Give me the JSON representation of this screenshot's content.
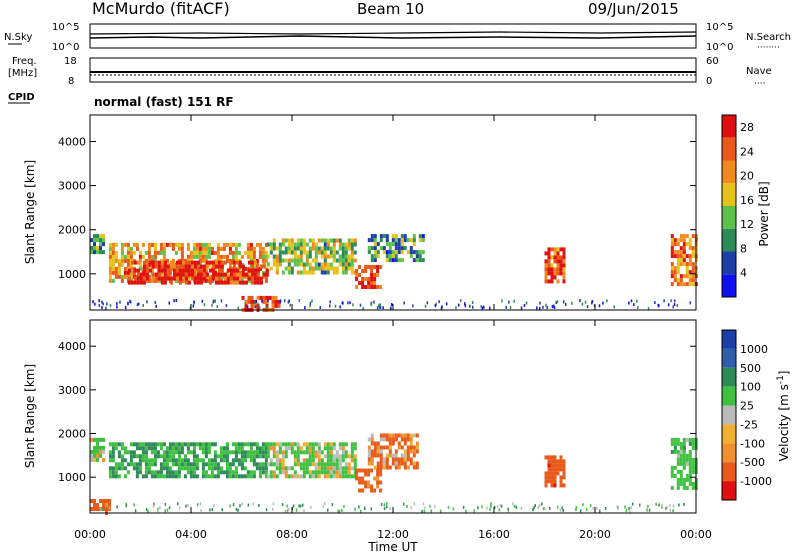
{
  "header": {
    "station": "McMurdo (fitACF)",
    "beam": "Beam 10",
    "date": "09/Jun/2015"
  },
  "side_labels": {
    "nsky": "N.Sky",
    "nsearch": "N.Search",
    "freq_line1": "Freq.",
    "freq_line2": "[MHz]",
    "nave": "Nave",
    "cpid": "CPID",
    "cpid_value": "normal (fast) 151 RF"
  },
  "noise_axis": {
    "left_top": "10^5",
    "left_bottom": "10^0",
    "right_top": "10^5",
    "right_bottom": "10^0"
  },
  "freq_axis": {
    "left_top": "18",
    "left_bottom": "8",
    "right_top": "60",
    "right_bottom": "0"
  },
  "colors": {
    "power_scale": [
      "#1010ee",
      "#1c3fa8",
      "#2f8a5a",
      "#5cc24a",
      "#e6c21a",
      "#f08a1e",
      "#e8591a",
      "#e01010"
    ],
    "velocity_scale": [
      "#e01010",
      "#e85b1a",
      "#f09030",
      "#f0b030",
      "#bbbbbb",
      "#40c040",
      "#2f8a5a",
      "#2f5fa8",
      "#1c3fa8"
    ]
  },
  "chart_data": [
    {
      "type": "heatmap",
      "title": "",
      "xlabel": "",
      "ylabel": "Slant Range [km]",
      "xlim": [
        "00:00",
        "24:00"
      ],
      "ylim": [
        180,
        4600
      ],
      "y_ticks": [
        "1000",
        "2000",
        "3000",
        "4000"
      ],
      "colorbar": {
        "label": "Power [dB]",
        "ticks": [
          "4",
          "8",
          "12",
          "16",
          "20",
          "24",
          "28"
        ],
        "range": [
          0,
          30
        ]
      },
      "echo_regions": [
        {
          "x_start": "00:00",
          "x_end": "00:30",
          "y_start": 1500,
          "y_end": 1900,
          "value": 10
        },
        {
          "x_start": "00:45",
          "x_end": "07:00",
          "y_start": 800,
          "y_end": 1700,
          "value": 20
        },
        {
          "x_start": "01:30",
          "x_end": "07:00",
          "y_start": 800,
          "y_end": 1300,
          "value": 28
        },
        {
          "x_start": "07:00",
          "x_end": "10:30",
          "y_start": 1000,
          "y_end": 1800,
          "value": 14
        },
        {
          "x_start": "10:30",
          "x_end": "11:30",
          "y_start": 700,
          "y_end": 1200,
          "value": 26
        },
        {
          "x_start": "11:00",
          "x_end": "13:15",
          "y_start": 1300,
          "y_end": 1900,
          "value": 10
        },
        {
          "x_start": "06:00",
          "x_end": "07:30",
          "y_start": 200,
          "y_end": 500,
          "value": 26
        },
        {
          "x_start": "18:00",
          "x_end": "18:45",
          "y_start": 800,
          "y_end": 1600,
          "value": 24
        },
        {
          "x_start": "23:00",
          "x_end": "24:00",
          "y_start": 800,
          "y_end": 1900,
          "value": 22
        }
      ]
    },
    {
      "type": "heatmap",
      "title": "",
      "xlabel": "Time UT",
      "ylabel": "Slant Range [km]",
      "xlim": [
        "00:00",
        "24:00"
      ],
      "ylim": [
        180,
        4600
      ],
      "x_ticks": [
        "00:00",
        "04:00",
        "08:00",
        "12:00",
        "16:00",
        "20:00",
        "00:00"
      ],
      "y_ticks": [
        "1000",
        "2000",
        "3000",
        "4000"
      ],
      "colorbar": {
        "label": "Velocity [m s^-1]",
        "ticks": [
          "1000",
          "500",
          "100",
          "25",
          "-25",
          "-100",
          "-500",
          "-1000"
        ]
      },
      "echo_regions": [
        {
          "x_start": "00:00",
          "x_end": "00:30",
          "y_start": 1400,
          "y_end": 1900,
          "value": 150
        },
        {
          "x_start": "00:45",
          "x_end": "07:00",
          "y_start": 1000,
          "y_end": 1800,
          "value": 500
        },
        {
          "x_start": "07:00",
          "x_end": "10:30",
          "y_start": 1000,
          "y_end": 1800,
          "value": 150
        },
        {
          "x_start": "10:30",
          "x_end": "11:30",
          "y_start": 700,
          "y_end": 1200,
          "value": -250
        },
        {
          "x_start": "11:00",
          "x_end": "13:00",
          "y_start": 1200,
          "y_end": 2000,
          "value": -150
        },
        {
          "x_start": "00:00",
          "x_end": "00:45",
          "y_start": 200,
          "y_end": 500,
          "value": -300
        },
        {
          "x_start": "18:00",
          "x_end": "18:45",
          "y_start": 800,
          "y_end": 1500,
          "value": -300
        },
        {
          "x_start": "23:00",
          "x_end": "24:00",
          "y_start": 800,
          "y_end": 1900,
          "value": 300
        }
      ]
    }
  ]
}
